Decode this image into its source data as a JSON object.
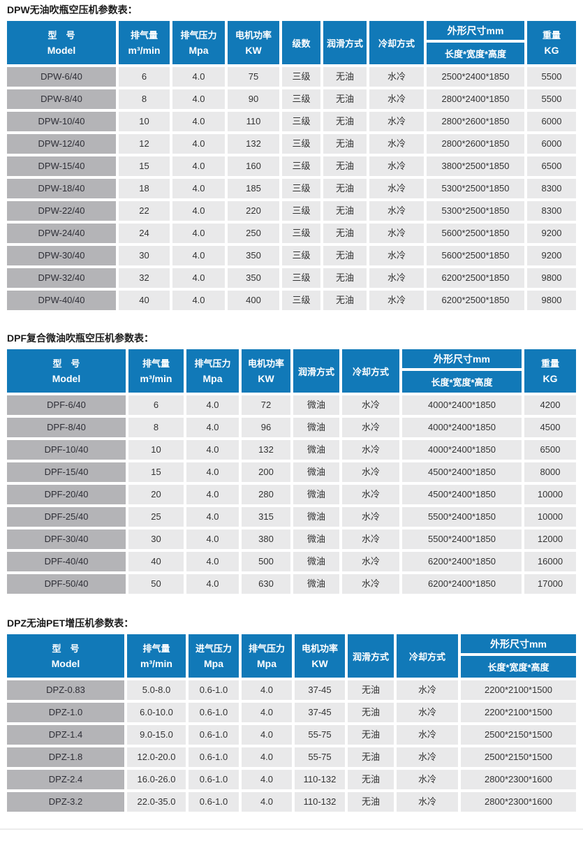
{
  "page": {
    "background": "#ffffff",
    "accent_blue": "#1179b8",
    "model_cell_gray": "#b4b4b7",
    "data_cell_gray": "#e9e9ea",
    "divider_color": "#ececec"
  },
  "tables": [
    {
      "title": "DPW无油吹瓶空压机参数表：",
      "columns": [
        {
          "kind": "twoline",
          "top": "型　号",
          "bottom": "Model"
        },
        {
          "kind": "twoline",
          "top": "排气量",
          "bottom": "m³/min"
        },
        {
          "kind": "twoline",
          "top": "排气压力",
          "bottom": "Mpa"
        },
        {
          "kind": "twoline",
          "top": "电机功率",
          "bottom": "KW"
        },
        {
          "kind": "single",
          "label": "级数"
        },
        {
          "kind": "single",
          "label": "润滑方式"
        },
        {
          "kind": "single",
          "label": "冷却方式"
        },
        {
          "kind": "split",
          "top": "外形尺寸mm",
          "bottom": "长度*宽度*高度"
        },
        {
          "kind": "twoline",
          "top": "重量",
          "bottom": "KG"
        }
      ],
      "rows": [
        [
          "DPW-6/40",
          "6",
          "4.0",
          "75",
          "三级",
          "无油",
          "水冷",
          "2500*2400*1850",
          "5500"
        ],
        [
          "DPW-8/40",
          "8",
          "4.0",
          "90",
          "三级",
          "无油",
          "水冷",
          "2800*2400*1850",
          "5500"
        ],
        [
          "DPW-10/40",
          "10",
          "4.0",
          "110",
          "三级",
          "无油",
          "水冷",
          "2800*2600*1850",
          "6000"
        ],
        [
          "DPW-12/40",
          "12",
          "4.0",
          "132",
          "三级",
          "无油",
          "水冷",
          "2800*2600*1850",
          "6000"
        ],
        [
          "DPW-15/40",
          "15",
          "4.0",
          "160",
          "三级",
          "无油",
          "水冷",
          "3800*2500*1850",
          "6500"
        ],
        [
          "DPW-18/40",
          "18",
          "4.0",
          "185",
          "三级",
          "无油",
          "水冷",
          "5300*2500*1850",
          "8300"
        ],
        [
          "DPW-22/40",
          "22",
          "4.0",
          "220",
          "三级",
          "无油",
          "水冷",
          "5300*2500*1850",
          "8300"
        ],
        [
          "DPW-24/40",
          "24",
          "4.0",
          "250",
          "三级",
          "无油",
          "水冷",
          "5600*2500*1850",
          "9200"
        ],
        [
          "DPW-30/40",
          "30",
          "4.0",
          "350",
          "三级",
          "无油",
          "水冷",
          "5600*2500*1850",
          "9200"
        ],
        [
          "DPW-32/40",
          "32",
          "4.0",
          "350",
          "三级",
          "无油",
          "水冷",
          "6200*2500*1850",
          "9800"
        ],
        [
          "DPW-40/40",
          "40",
          "4.0",
          "400",
          "三级",
          "无油",
          "水冷",
          "6200*2500*1850",
          "9800"
        ]
      ]
    },
    {
      "title": "DPF复合微油吹瓶空压机参数表：",
      "columns": [
        {
          "kind": "twoline",
          "top": "型　号",
          "bottom": "Model"
        },
        {
          "kind": "twoline",
          "top": "排气量",
          "bottom": "m³/min"
        },
        {
          "kind": "twoline",
          "top": "排气压力",
          "bottom": "Mpa"
        },
        {
          "kind": "twoline",
          "top": "电机功率",
          "bottom": "KW"
        },
        {
          "kind": "single",
          "label": "润滑方式"
        },
        {
          "kind": "single",
          "label": "冷却方式"
        },
        {
          "kind": "split",
          "top": "外形尺寸mm",
          "bottom": "长度*宽度*高度"
        },
        {
          "kind": "twoline",
          "top": "重量",
          "bottom": "KG"
        }
      ],
      "rows": [
        [
          "DPF-6/40",
          "6",
          "4.0",
          "72",
          "微油",
          "水冷",
          "4000*2400*1850",
          "4200"
        ],
        [
          "DPF-8/40",
          "8",
          "4.0",
          "96",
          "微油",
          "水冷",
          "4000*2400*1850",
          "4500"
        ],
        [
          "DPF-10/40",
          "10",
          "4.0",
          "132",
          "微油",
          "水冷",
          "4000*2400*1850",
          "6500"
        ],
        [
          "DPF-15/40",
          "15",
          "4.0",
          "200",
          "微油",
          "水冷",
          "4500*2400*1850",
          "8000"
        ],
        [
          "DPF-20/40",
          "20",
          "4.0",
          "280",
          "微油",
          "水冷",
          "4500*2400*1850",
          "10000"
        ],
        [
          "DPF-25/40",
          "25",
          "4.0",
          "315",
          "微油",
          "水冷",
          "5500*2400*1850",
          "10000"
        ],
        [
          "DPF-30/40",
          "30",
          "4.0",
          "380",
          "微油",
          "水冷",
          "5500*2400*1850",
          "12000"
        ],
        [
          "DPF-40/40",
          "40",
          "4.0",
          "500",
          "微油",
          "水冷",
          "6200*2400*1850",
          "16000"
        ],
        [
          "DPF-50/40",
          "50",
          "4.0",
          "630",
          "微油",
          "水冷",
          "6200*2400*1850",
          "17000"
        ]
      ]
    },
    {
      "title": "DPZ无油PET增压机参数表：",
      "columns": [
        {
          "kind": "twoline",
          "top": "型　号",
          "bottom": "Model"
        },
        {
          "kind": "twoline",
          "top": "排气量",
          "bottom": "m³/min"
        },
        {
          "kind": "twoline",
          "top": "进气压力",
          "bottom": "Mpa"
        },
        {
          "kind": "twoline",
          "top": "排气压力",
          "bottom": "Mpa"
        },
        {
          "kind": "twoline",
          "top": "电机功率",
          "bottom": "KW"
        },
        {
          "kind": "single",
          "label": "润滑方式"
        },
        {
          "kind": "single",
          "label": "冷却方式"
        },
        {
          "kind": "split",
          "top": "外形尺寸mm",
          "bottom": "长度*宽度*高度"
        }
      ],
      "rows": [
        [
          "DPZ-0.83",
          "5.0-8.0",
          "0.6-1.0",
          "4.0",
          "37-45",
          "无油",
          "水冷",
          "2200*2100*1500"
        ],
        [
          "DPZ-1.0",
          "6.0-10.0",
          "0.6-1.0",
          "4.0",
          "37-45",
          "无油",
          "水冷",
          "2200*2100*1500"
        ],
        [
          "DPZ-1.4",
          "9.0-15.0",
          "0.6-1.0",
          "4.0",
          "55-75",
          "无油",
          "水冷",
          "2500*2150*1500"
        ],
        [
          "DPZ-1.8",
          "12.0-20.0",
          "0.6-1.0",
          "4.0",
          "55-75",
          "无油",
          "水冷",
          "2500*2150*1500"
        ],
        [
          "DPZ-2.4",
          "16.0-26.0",
          "0.6-1.0",
          "4.0",
          "110-132",
          "无油",
          "水冷",
          "2800*2300*1600"
        ],
        [
          "DPZ-3.2",
          "22.0-35.0",
          "0.6-1.0",
          "4.0",
          "110-132",
          "无油",
          "水冷",
          "2800*2300*1600"
        ]
      ]
    }
  ]
}
